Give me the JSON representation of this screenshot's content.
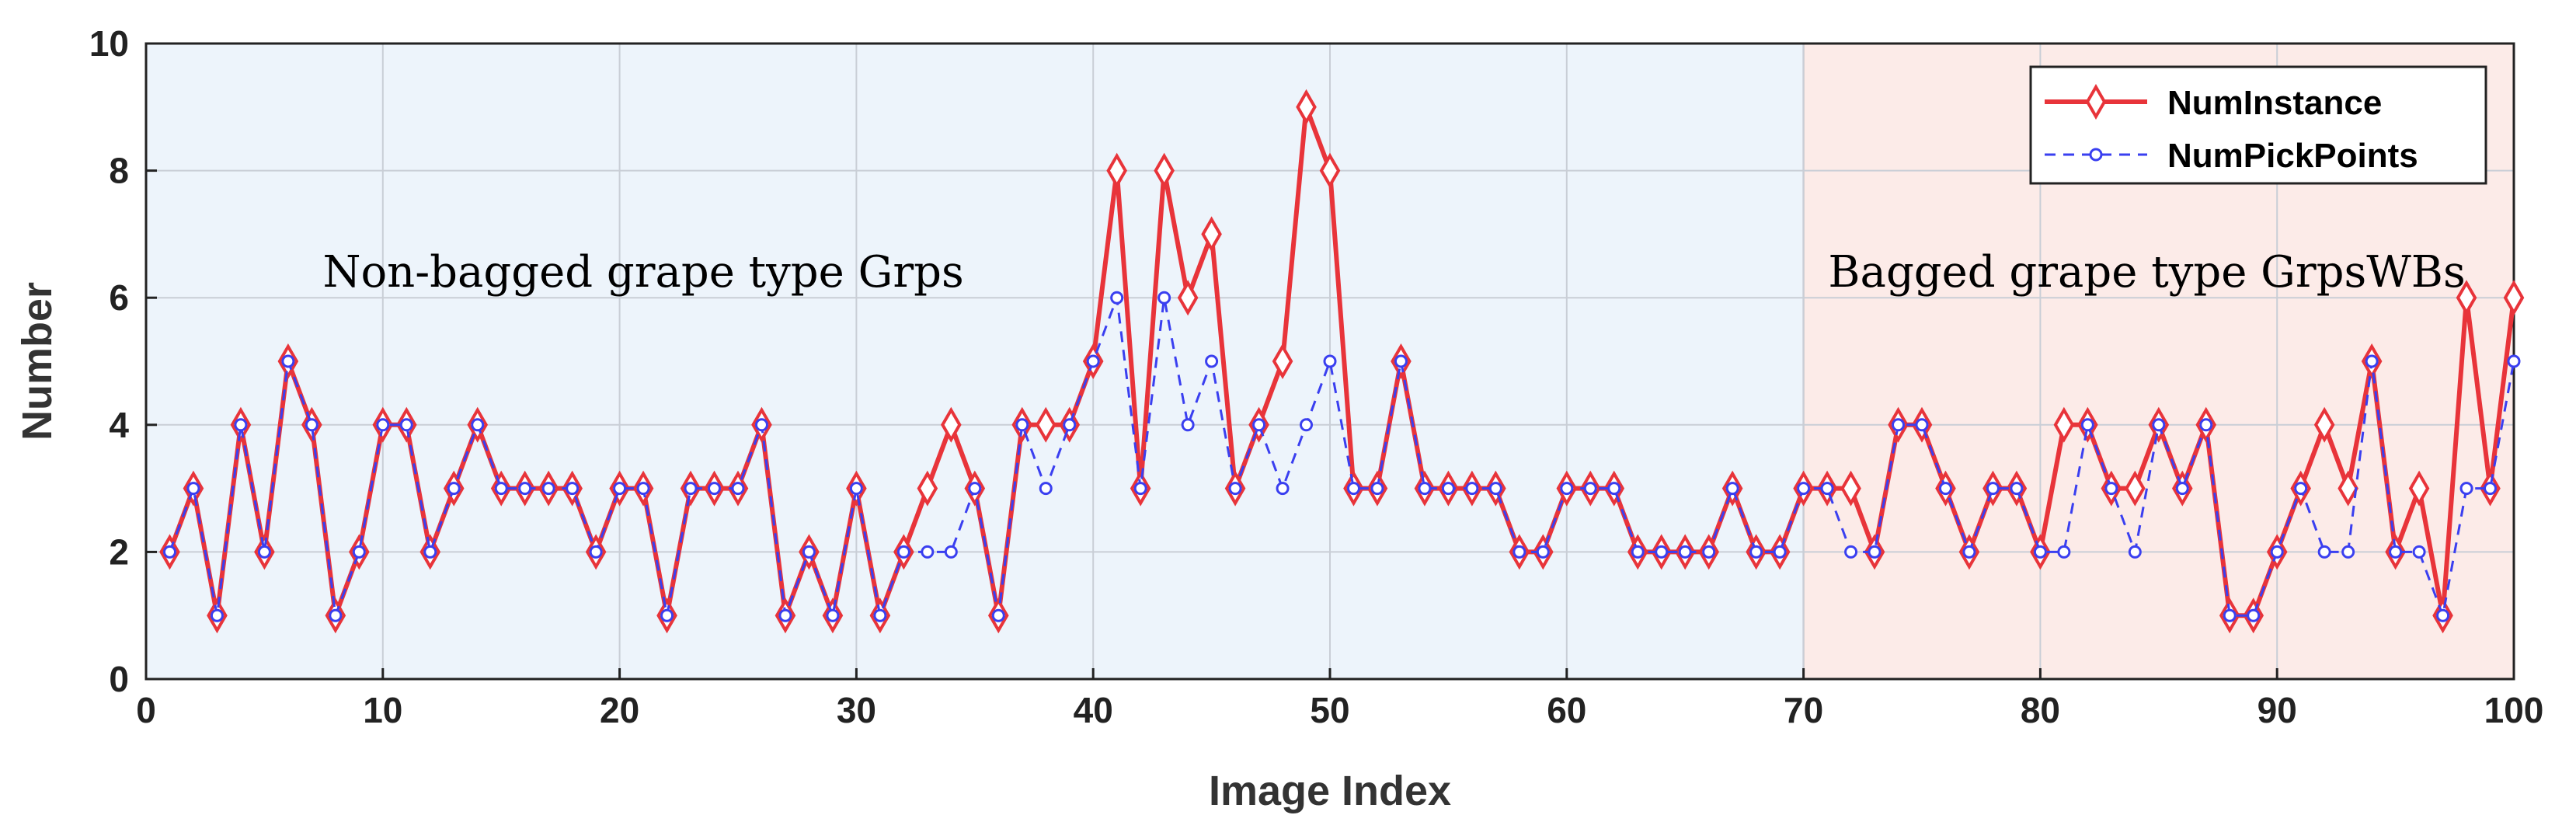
{
  "chart_data": {
    "type": "line",
    "xlabel": "Image Index",
    "ylabel": "Number",
    "xlim": [
      0,
      100
    ],
    "ylim": [
      0,
      10
    ],
    "xticks": [
      0,
      10,
      20,
      30,
      40,
      50,
      60,
      70,
      80,
      90,
      100
    ],
    "yticks": [
      0,
      2,
      4,
      6,
      8,
      10
    ],
    "grid": true,
    "legend": "top-right",
    "regions": [
      {
        "x_start": 0,
        "x_end": 70,
        "color": "#edf4fb"
      },
      {
        "x_start": 70,
        "x_end": 100,
        "color": "#fcebe8"
      }
    ],
    "annotations": [
      {
        "text": "Non-bagged grape type Grps",
        "x": 21,
        "y": 6.2
      },
      {
        "text": "Bagged grape type GrpsWBs",
        "x": 84.5,
        "y": 6.2
      }
    ],
    "series": [
      {
        "name": "NumInstance",
        "color": "#e8343a",
        "line": "solid",
        "marker": "diamond",
        "x": [
          1,
          2,
          3,
          4,
          5,
          6,
          7,
          8,
          9,
          10,
          11,
          12,
          13,
          14,
          15,
          16,
          17,
          18,
          19,
          20,
          21,
          22,
          23,
          24,
          25,
          26,
          27,
          28,
          29,
          30,
          31,
          32,
          33,
          34,
          35,
          36,
          37,
          38,
          39,
          40,
          41,
          42,
          43,
          44,
          45,
          46,
          47,
          48,
          49,
          50,
          51,
          52,
          53,
          54,
          55,
          56,
          57,
          58,
          59,
          60,
          61,
          62,
          63,
          64,
          65,
          66,
          67,
          68,
          69,
          70,
          71,
          72,
          73,
          74,
          75,
          76,
          77,
          78,
          79,
          80,
          81,
          82,
          83,
          84,
          85,
          86,
          87,
          88,
          89,
          90,
          91,
          92,
          93,
          94,
          95,
          96,
          97,
          98,
          99,
          100
        ],
        "values": [
          2,
          3,
          1,
          4,
          2,
          5,
          4,
          1,
          2,
          4,
          4,
          2,
          3,
          4,
          3,
          3,
          3,
          3,
          2,
          3,
          3,
          1,
          3,
          3,
          3,
          4,
          1,
          2,
          1,
          3,
          1,
          2,
          3,
          4,
          3,
          1,
          4,
          4,
          4,
          5,
          8,
          3,
          8,
          6,
          7,
          3,
          4,
          5,
          9,
          8,
          3,
          3,
          5,
          3,
          3,
          3,
          3,
          2,
          2,
          3,
          3,
          3,
          2,
          2,
          2,
          2,
          3,
          2,
          2,
          3,
          3,
          3,
          2,
          4,
          4,
          3,
          2,
          3,
          3,
          2,
          4,
          4,
          3,
          3,
          4,
          3,
          4,
          1,
          1,
          2,
          3,
          4,
          3,
          5,
          2,
          3,
          1,
          6,
          3,
          6
        ]
      },
      {
        "name": "NumPickPoints",
        "color": "#3a3ff0",
        "line": "dashed",
        "marker": "circle",
        "x": [
          1,
          2,
          3,
          4,
          5,
          6,
          7,
          8,
          9,
          10,
          11,
          12,
          13,
          14,
          15,
          16,
          17,
          18,
          19,
          20,
          21,
          22,
          23,
          24,
          25,
          26,
          27,
          28,
          29,
          30,
          31,
          32,
          33,
          34,
          35,
          36,
          37,
          38,
          39,
          40,
          41,
          42,
          43,
          44,
          45,
          46,
          47,
          48,
          49,
          50,
          51,
          52,
          53,
          54,
          55,
          56,
          57,
          58,
          59,
          60,
          61,
          62,
          63,
          64,
          65,
          66,
          67,
          68,
          69,
          70,
          71,
          72,
          73,
          74,
          75,
          76,
          77,
          78,
          79,
          80,
          81,
          82,
          83,
          84,
          85,
          86,
          87,
          88,
          89,
          90,
          91,
          92,
          93,
          94,
          95,
          96,
          97,
          98,
          99,
          100
        ],
        "values": [
          2,
          3,
          1,
          4,
          2,
          5,
          4,
          1,
          2,
          4,
          4,
          2,
          3,
          4,
          3,
          3,
          3,
          3,
          2,
          3,
          3,
          1,
          3,
          3,
          3,
          4,
          1,
          2,
          1,
          3,
          1,
          2,
          2,
          2,
          3,
          1,
          4,
          3,
          4,
          5,
          6,
          3,
          6,
          4,
          5,
          3,
          4,
          3,
          4,
          5,
          3,
          3,
          5,
          3,
          3,
          3,
          3,
          2,
          2,
          3,
          3,
          3,
          2,
          2,
          2,
          2,
          3,
          2,
          2,
          3,
          3,
          2,
          2,
          4,
          4,
          3,
          2,
          3,
          3,
          2,
          2,
          4,
          3,
          2,
          4,
          3,
          4,
          1,
          1,
          2,
          3,
          2,
          2,
          5,
          2,
          2,
          1,
          3,
          3,
          5
        ]
      }
    ]
  }
}
